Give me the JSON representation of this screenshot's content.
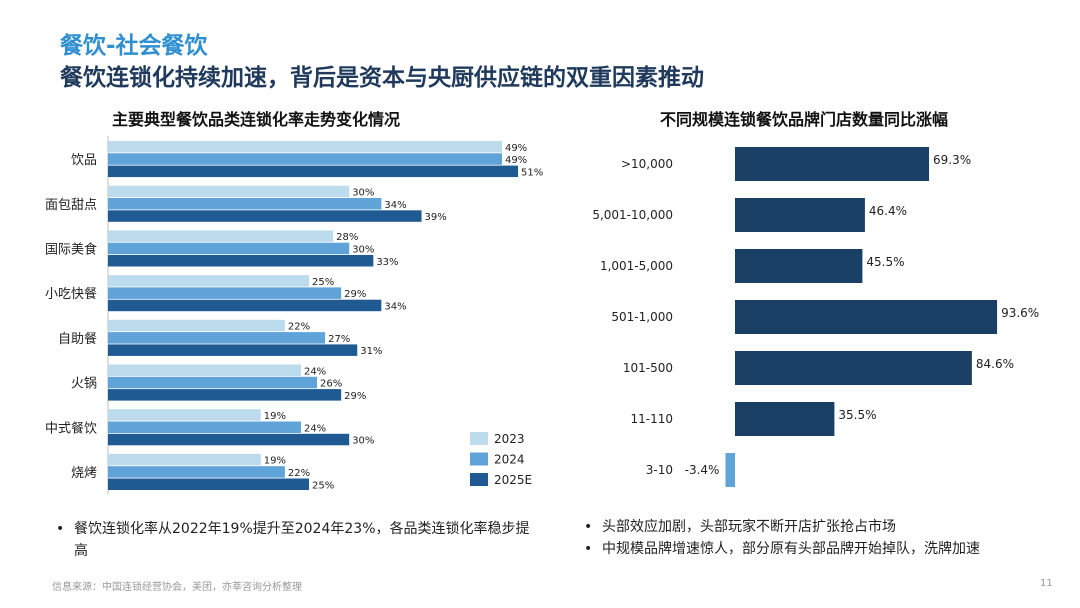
{
  "header": {
    "category": "餐饮-社会餐饮",
    "headline": "餐饮连锁化持续加速，背后是资本与央厨供应链的双重因素推动"
  },
  "colors": {
    "c2023": "#bcdcee",
    "c2024": "#5fa3d8",
    "c2025": "#1f5a93",
    "cRight": "#1a3f64",
    "cNeg": "#5fa3d8"
  },
  "chart_data": [
    {
      "type": "bar",
      "orientation": "horizontal",
      "title": "主要典型餐饮品类连锁化率走势变化情况",
      "categories": [
        "饮品",
        "面包甜点",
        "国际美食",
        "小吃快餐",
        "自助餐",
        "火锅",
        "中式餐饮",
        "烧烤"
      ],
      "series": [
        {
          "name": "2023",
          "values": [
            49,
            30,
            28,
            25,
            22,
            24,
            19,
            19
          ]
        },
        {
          "name": "2024",
          "values": [
            49,
            34,
            30,
            29,
            27,
            26,
            24,
            22
          ]
        },
        {
          "name": "2025E",
          "values": [
            51,
            39,
            33,
            34,
            31,
            29,
            30,
            25
          ]
        }
      ],
      "unit": "%",
      "xlim": [
        0,
        60
      ],
      "legend": "bottom-right"
    },
    {
      "type": "bar",
      "orientation": "horizontal",
      "title": "不同规模连锁餐饮品牌门店数量同比涨幅",
      "categories": [
        ">10,000",
        "5,001-10,000",
        "1,001-5,000",
        "501-1,000",
        "101-500",
        "11-110",
        "3-10"
      ],
      "values": [
        69.3,
        46.4,
        45.5,
        93.6,
        84.6,
        35.5,
        -3.4
      ],
      "unit": "%",
      "xlim": [
        -5,
        100
      ]
    }
  ],
  "bullets_left": [
    "餐饮连锁化率从2022年19%提升至2024年23%，各品类连锁化率稳步提高"
  ],
  "bullets_right": [
    "头部效应加剧，头部玩家不断开店扩张抢占市场",
    "中规模品牌增速惊人，部分原有头部品牌开始掉队，洗牌加速"
  ],
  "footer": {
    "source": "信息来源：中国连锁经营协会，美团，亦莘咨询分析整理",
    "page": "11"
  }
}
